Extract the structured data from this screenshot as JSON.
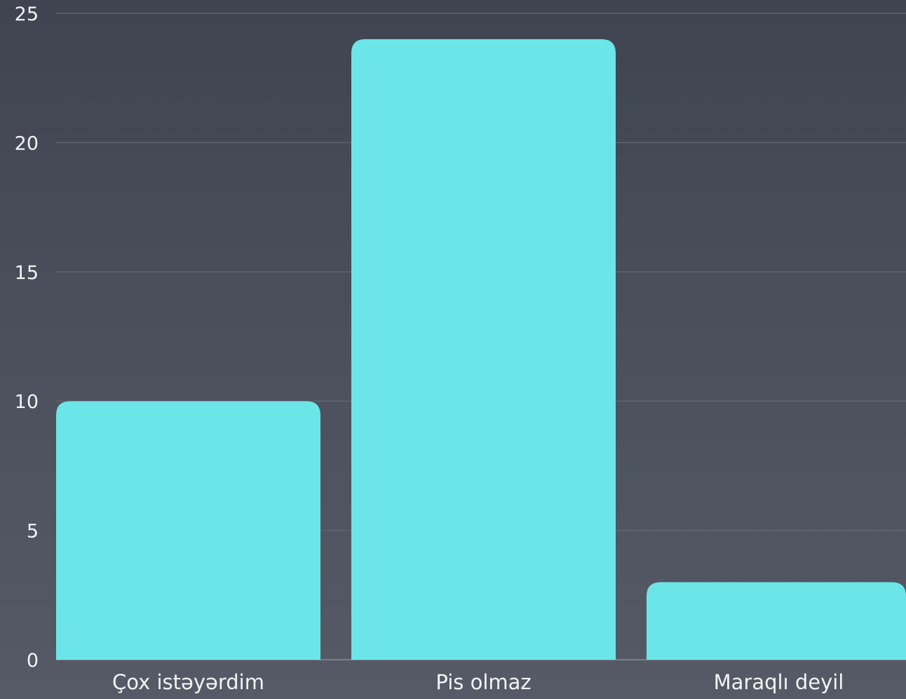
{
  "chart_data": {
    "type": "bar",
    "title": "",
    "xlabel": "",
    "ylabel": "",
    "categories": [
      "Çox istəyərdim",
      "Pis olmaz",
      "Maraqlı deyil"
    ],
    "values": [
      10,
      24,
      3
    ],
    "ylim": [
      0,
      25
    ],
    "y_ticks": [
      "0",
      "5",
      "10",
      "15",
      "20",
      "25"
    ],
    "grid": true,
    "legend": "none"
  },
  "colors": {
    "bar": "#6ce5e8",
    "background_top": "#3f4450",
    "background_bottom": "#555a66",
    "text": "#f2f3f5"
  }
}
